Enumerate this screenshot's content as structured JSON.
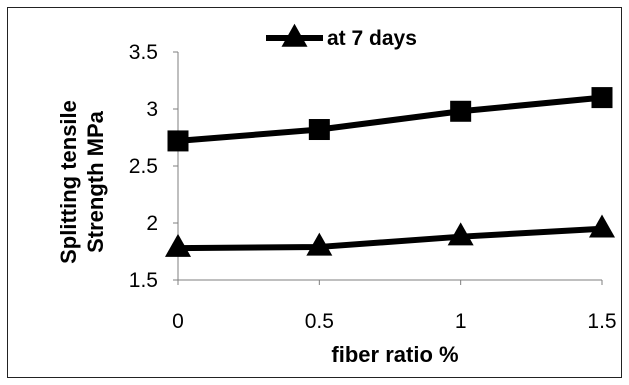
{
  "chart_data": {
    "type": "line",
    "title": "",
    "xlabel": "fiber ratio %",
    "ylabel_lines": [
      "Splitting tensile",
      "Strength MPa"
    ],
    "categories": [
      "0",
      "0.5",
      "1",
      "1.5"
    ],
    "y_ticks": [
      "1.5",
      "2",
      "2.5",
      "3",
      "3.5"
    ],
    "ylim": [
      1.5,
      3.5
    ],
    "legend_position": "top-center",
    "legend_label": "at 7 days",
    "series": [
      {
        "marker": "square",
        "values": [
          2.72,
          2.82,
          2.98,
          3.1
        ]
      },
      {
        "name": "at 7 days",
        "marker": "triangle",
        "values": [
          1.78,
          1.79,
          1.88,
          1.95
        ]
      }
    ],
    "colors": {
      "line": "#000000",
      "frame": "#222222"
    }
  }
}
